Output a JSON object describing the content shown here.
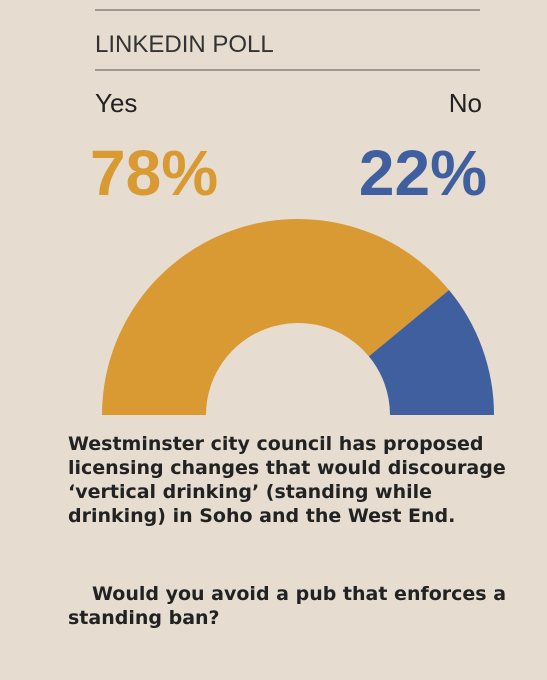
{
  "chart_data": {
    "type": "halfdonut",
    "title": "LINKEDIN POLL",
    "categories": [
      "Yes",
      "No"
    ],
    "values": [
      78,
      22
    ],
    "value_labels": [
      "78%",
      "22%"
    ],
    "colors": [
      "#d99a34",
      "#3f5f9f"
    ],
    "question": [
      "Westminster city council has proposed licensing changes that would discourage ‘vertical drinking’ (standing while drinking) in Soho and the West End.",
      "Would you avoid a pub that enforces a standing ban?"
    ]
  }
}
